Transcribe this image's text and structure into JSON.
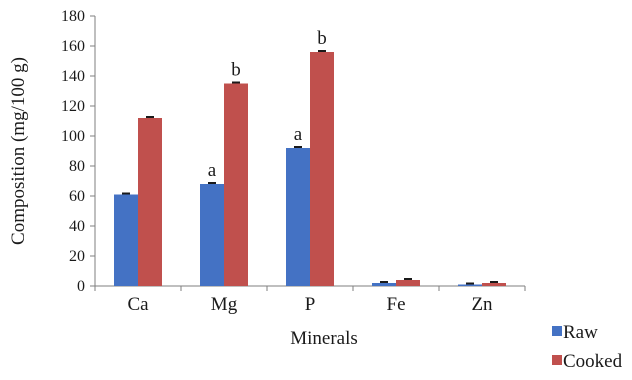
{
  "chart_data": {
    "type": "bar",
    "title": "",
    "xlabel": "Minerals",
    "ylabel": "Composition (mg/100 g)",
    "categories": [
      "Ca",
      "Mg",
      "P",
      "Fe",
      "Zn"
    ],
    "ylim": [
      0,
      180
    ],
    "yticks": [
      0,
      20,
      40,
      60,
      80,
      100,
      120,
      140,
      160,
      180
    ],
    "series": [
      {
        "name": "Raw",
        "color": "#4472c4",
        "values": [
          61,
          68,
          92,
          2,
          1
        ],
        "significance": [
          "",
          "a",
          "a",
          "",
          ""
        ]
      },
      {
        "name": "Cooked",
        "color": "#c0504d",
        "values": [
          112,
          135,
          156,
          4,
          2
        ],
        "significance": [
          "",
          "b",
          "b",
          "",
          ""
        ]
      }
    ],
    "legend_position": "bottom-right",
    "grid": false
  }
}
